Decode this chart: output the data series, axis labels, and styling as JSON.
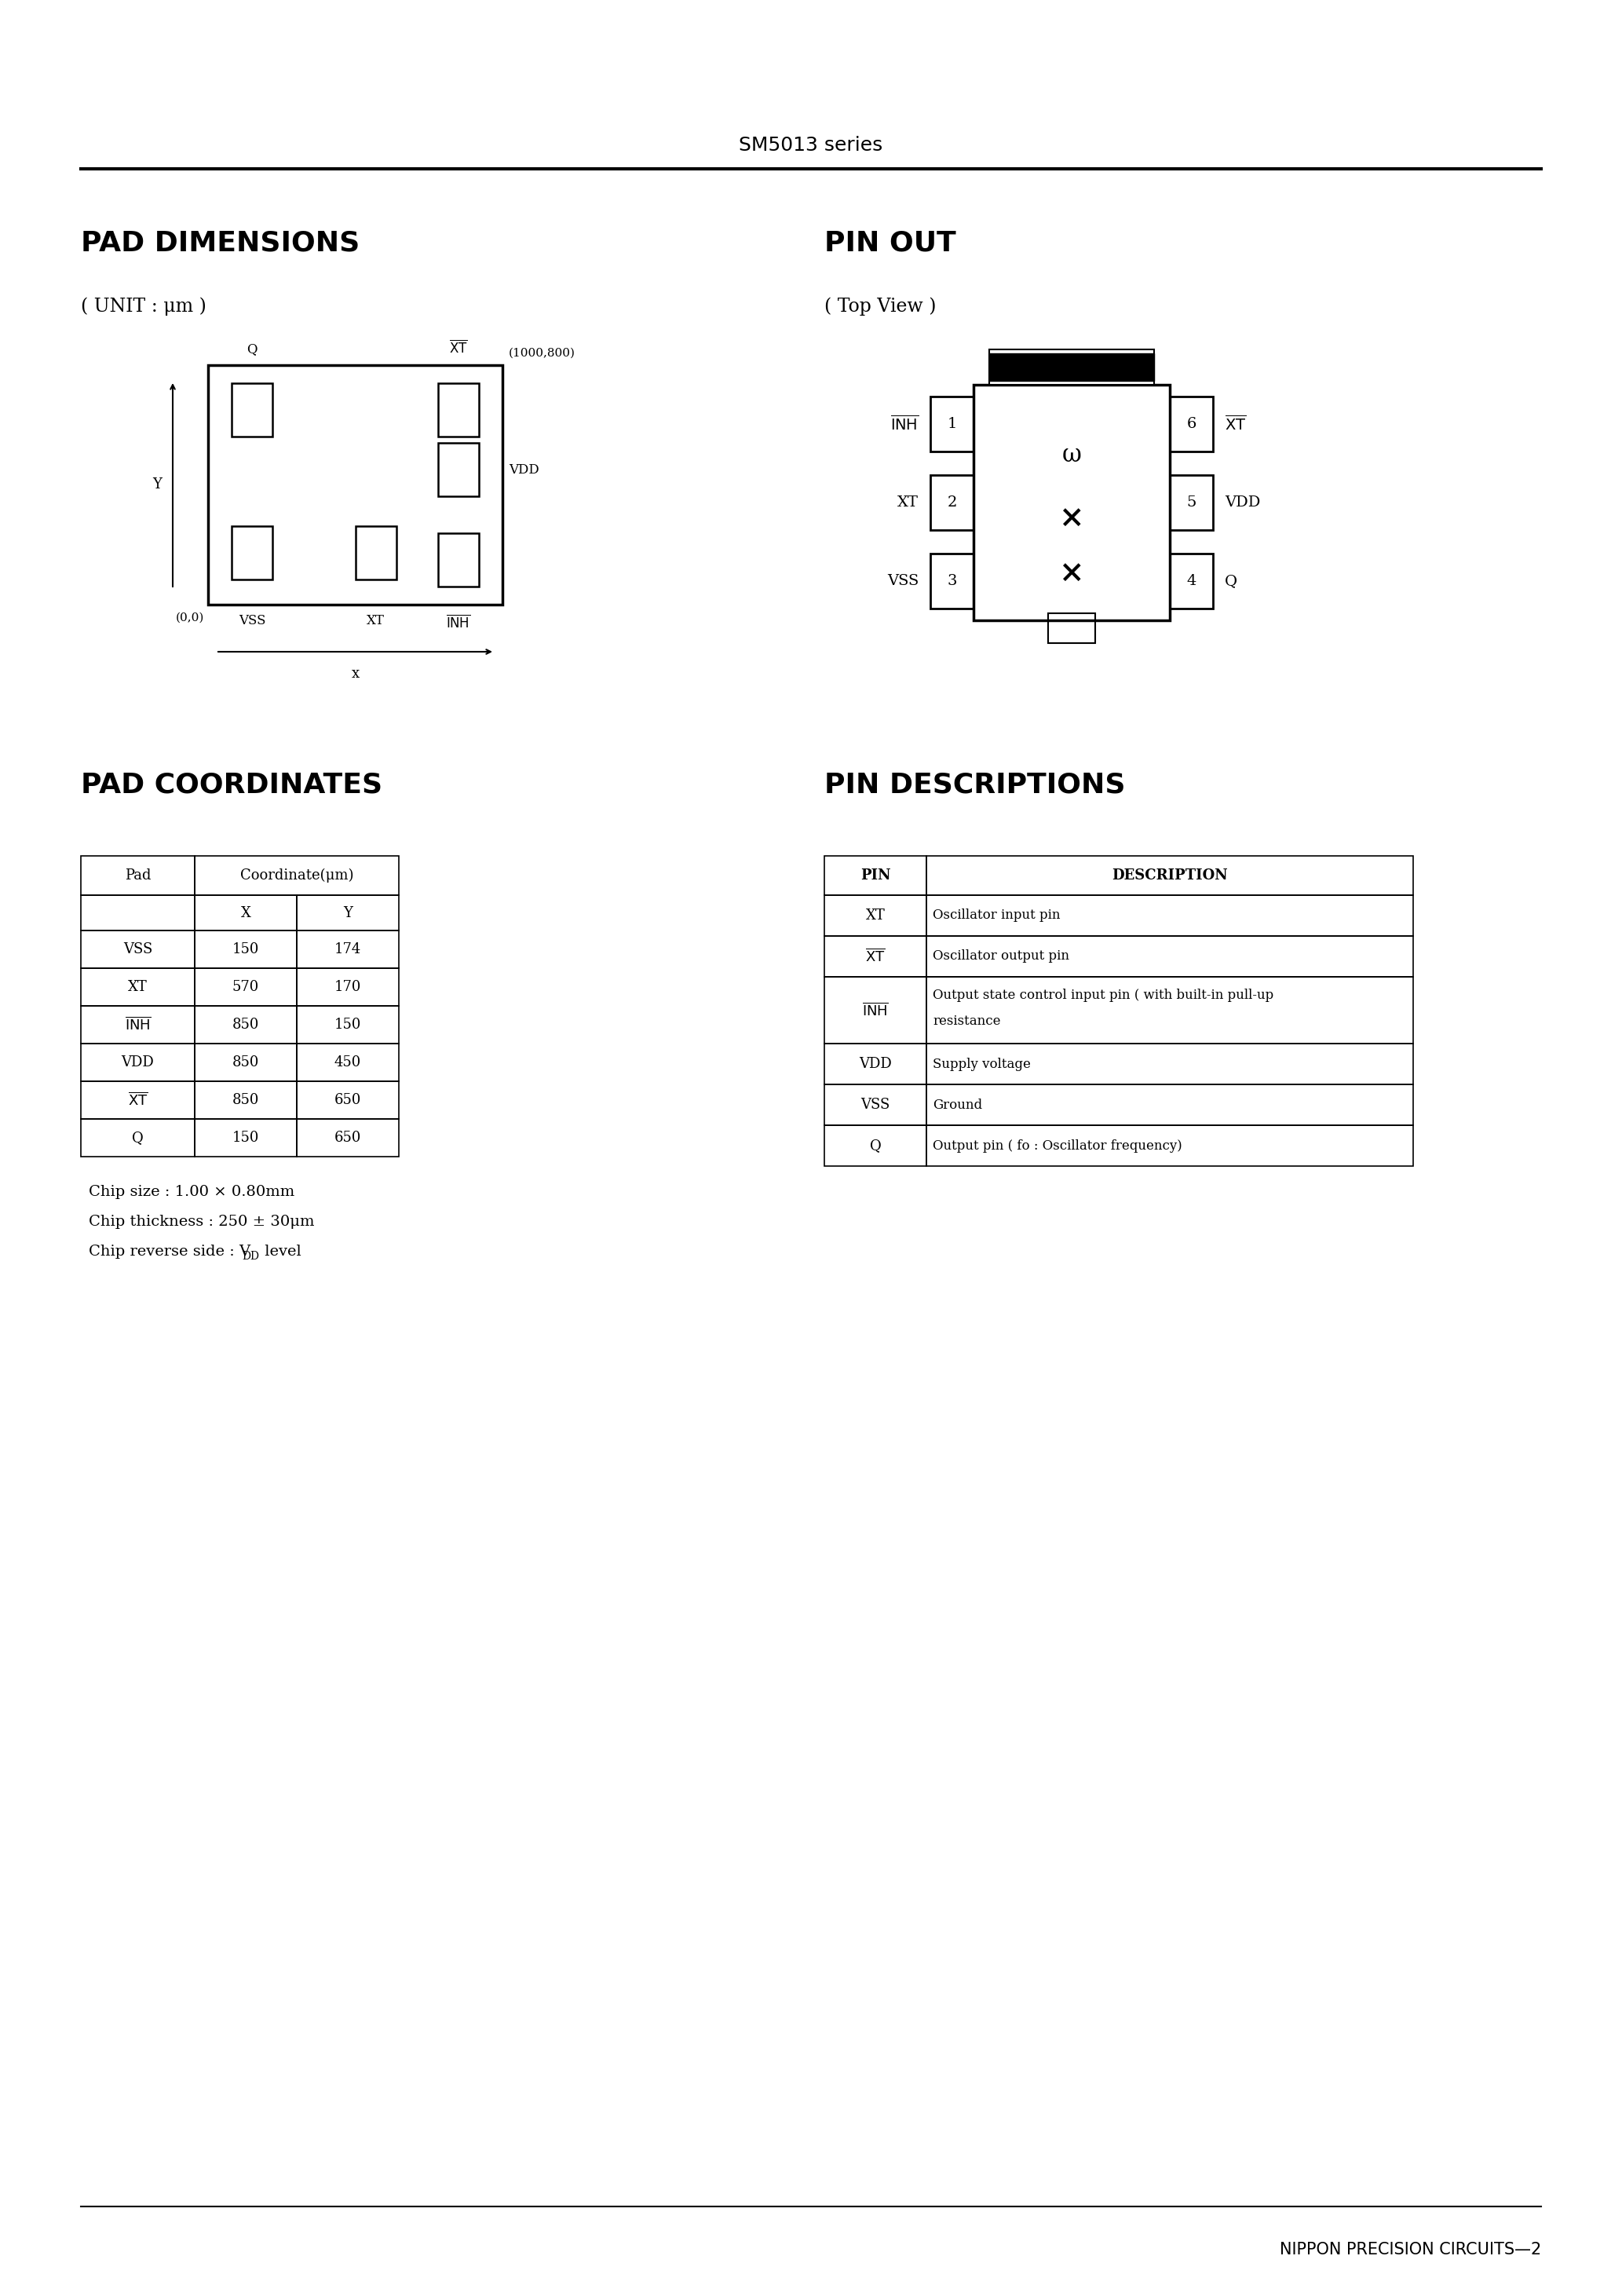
{
  "title_header": "SM5013 series",
  "bg_color": "#ffffff",
  "pad_dim_title": "PAD DIMENSIONS",
  "unit_label": "( UNIT : μm )",
  "pin_out_title": "PIN OUT",
  "top_view_label": "( Top View )",
  "pad_coord_title": "PAD COORDINATES",
  "pin_desc_title": "PIN DESCRIPTIONS",
  "footer_text": "NIPPON PRECISION CIRCUITS—2",
  "pad_table_rows": [
    [
      "VSS",
      "150",
      "174"
    ],
    [
      "XT",
      "570",
      "170"
    ],
    [
      "INH_bar",
      "850",
      "150"
    ],
    [
      "VDD",
      "850",
      "450"
    ],
    [
      "XT_bar",
      "850",
      "650"
    ],
    [
      "Q",
      "150",
      "650"
    ]
  ],
  "pin_table_rows": [
    [
      "XT",
      "Oscillator input pin"
    ],
    [
      "XT_bar",
      "Oscillator output pin"
    ],
    [
      "INH_bar",
      "Output state control input pin ( with built-in pull-up\nresistance"
    ],
    [
      "VDD",
      "Supply voltage"
    ],
    [
      "VSS",
      "Ground"
    ],
    [
      "Q",
      "Output pin ( fo : Oscillator frequency)"
    ]
  ],
  "chip_info_1": "Chip size : 1.00 × 0.80mm",
  "chip_info_2": "Chip thickness : 250 ± 30μm",
  "chip_info_3": "Chip reverse side : V",
  "chip_info_3b": "DD",
  "chip_info_3c": " level"
}
